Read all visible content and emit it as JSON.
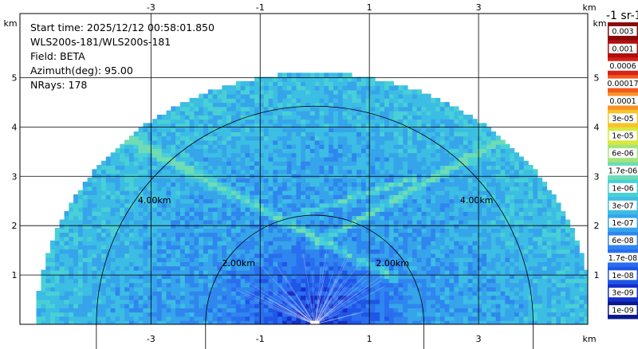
{
  "info": {
    "start_time": "Start time: 2025/12/12 00:58:01.850",
    "device": "WLS200s-181/WLS200s-181",
    "field": "Field: BETA",
    "azimuth": "Azimuth(deg): 95.00",
    "nrays": "NRays: 178"
  },
  "chart_data": {
    "type": "heatmap",
    "subtype": "lidar-rhi-scan",
    "x_ticks": [
      -3,
      -1,
      1,
      3
    ],
    "x_tick_labels": [
      "-3",
      "-1",
      "1",
      "3"
    ],
    "y_ticks": [
      1,
      2,
      3,
      4,
      5
    ],
    "y_tick_labels": [
      "1",
      "2",
      "3",
      "4",
      "5"
    ],
    "x_unit": "km",
    "y_unit": "km",
    "xlim": [
      -5.4,
      5
    ],
    "ylim": [
      0,
      6.3
    ],
    "max_range_km": 5.1,
    "range_rings_km": [
      2.0,
      4.0
    ],
    "range_ring_labels": [
      "2.00km",
      "4.00km"
    ],
    "grid": true,
    "colorbar": {
      "title": "-1 sr-1",
      "labels": [
        "1e-09",
        "3e-09",
        "1e-08",
        "1.7e-08",
        "6e-08",
        "1e-07",
        "3e-07",
        "1e-06",
        "1.7e-06",
        "6e-06",
        "1e-05",
        "3e-05",
        "0.0001",
        "0.00017",
        "0.0006",
        "0.001",
        "0.003"
      ],
      "colors": [
        "#0a1a8c",
        "#1630c8",
        "#1f56e6",
        "#2a6ef0",
        "#2f86ee",
        "#36a4ea",
        "#3cbde4",
        "#48d0d6",
        "#6edcb4",
        "#a4e47c",
        "#d8e83c",
        "#f6c42a",
        "#f89428",
        "#f25a1e",
        "#d42318",
        "#b01010",
        "#8a0a0a"
      ]
    }
  }
}
